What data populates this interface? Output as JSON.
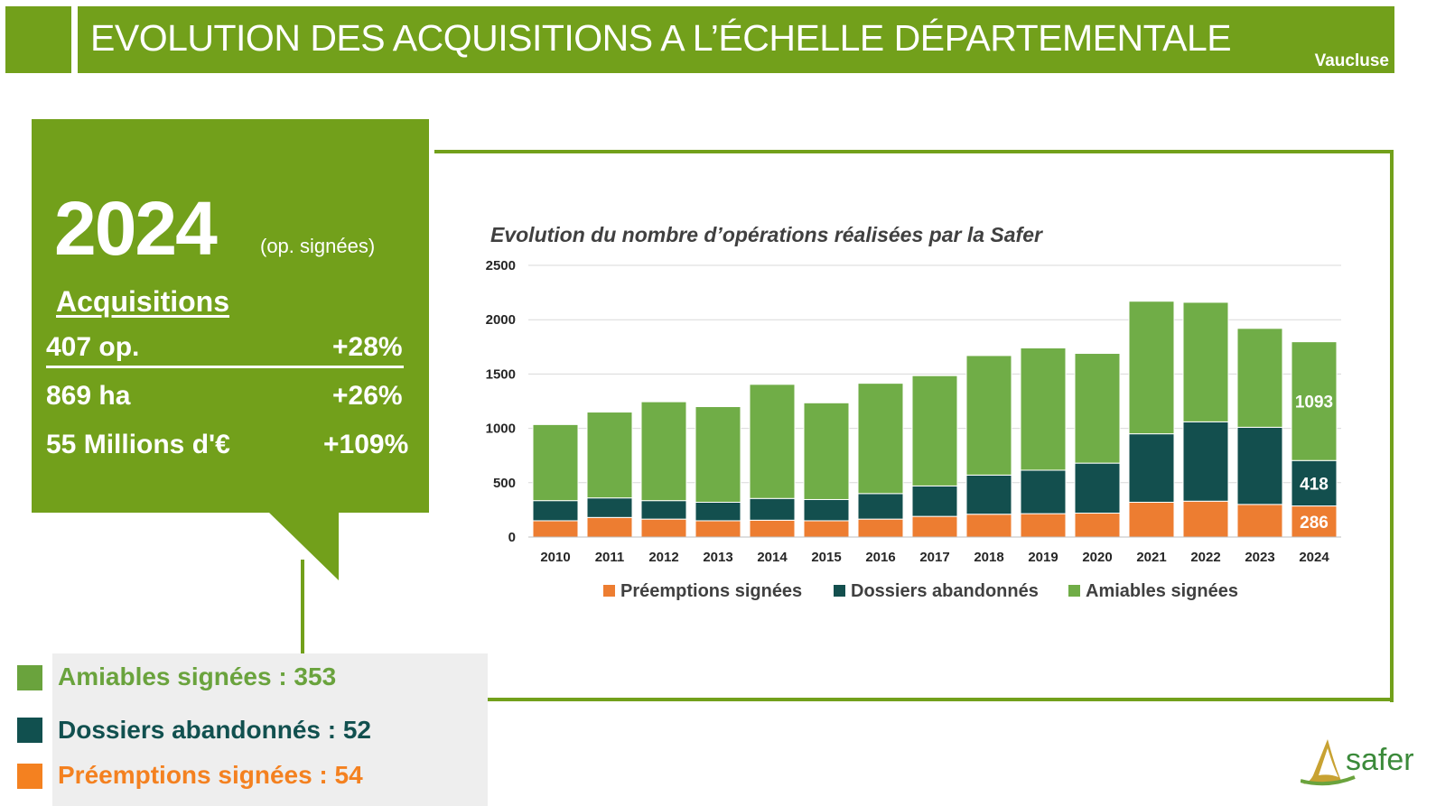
{
  "header": {
    "title": "EVOLUTION DES ACQUISITIONS A L’ÉCHELLE DÉPARTEMENTALE",
    "subtitle": "Vaucluse"
  },
  "summary": {
    "year": "2024",
    "year_note": "(op. signées)",
    "section_title": "Acquisitions",
    "rows": [
      {
        "label": "407 op.",
        "change": "+28%"
      },
      {
        "label": "869 ha",
        "change": "+26%"
      },
      {
        "label": "55 Millions d'€",
        "change": "+109%"
      }
    ]
  },
  "breakdown": [
    {
      "label": "Amiables signées : 353",
      "color": "#6aa33d"
    },
    {
      "label": "Dossiers abandonnés : 52",
      "color": "#11504f"
    },
    {
      "label": "Préemptions signées : 54",
      "color": "#f48120"
    }
  ],
  "logo_text": "safer",
  "colors": {
    "brand_green": "#72a01b",
    "amiables": "#70ad47",
    "dossiers": "#134f4e",
    "preemptions": "#ed7d31"
  },
  "chart_data": {
    "type": "bar",
    "stacked": true,
    "title": "Evolution du nombre d’opérations réalisées par la Safer",
    "categories": [
      "2010",
      "2011",
      "2012",
      "2013",
      "2014",
      "2015",
      "2016",
      "2017",
      "2018",
      "2019",
      "2020",
      "2021",
      "2022",
      "2023",
      "2024"
    ],
    "series": [
      {
        "name": "Préemptions signées",
        "values": [
          150,
          180,
          165,
          150,
          155,
          150,
          165,
          190,
          210,
          215,
          220,
          320,
          330,
          300,
          286
        ]
      },
      {
        "name": "Dossiers abandonnés",
        "values": [
          185,
          180,
          170,
          170,
          200,
          195,
          235,
          280,
          360,
          400,
          460,
          630,
          730,
          710,
          418
        ]
      },
      {
        "name": "Amiables signées",
        "values": [
          700,
          790,
          910,
          880,
          1050,
          890,
          1015,
          1015,
          1100,
          1125,
          1010,
          1220,
          1100,
          910,
          1093
        ]
      }
    ],
    "data_labels": [
      {
        "category": "2024",
        "series": "Amiables signées",
        "text": "1093"
      },
      {
        "category": "2024",
        "series": "Dossiers abandonnés",
        "text": "418"
      },
      {
        "category": "2024",
        "series": "Préemptions signées",
        "text": "286"
      }
    ],
    "ylim": [
      0,
      2500
    ],
    "yticks": [
      0,
      500,
      1000,
      1500,
      2000,
      2500
    ],
    "grid": true,
    "legend": "bottom"
  }
}
